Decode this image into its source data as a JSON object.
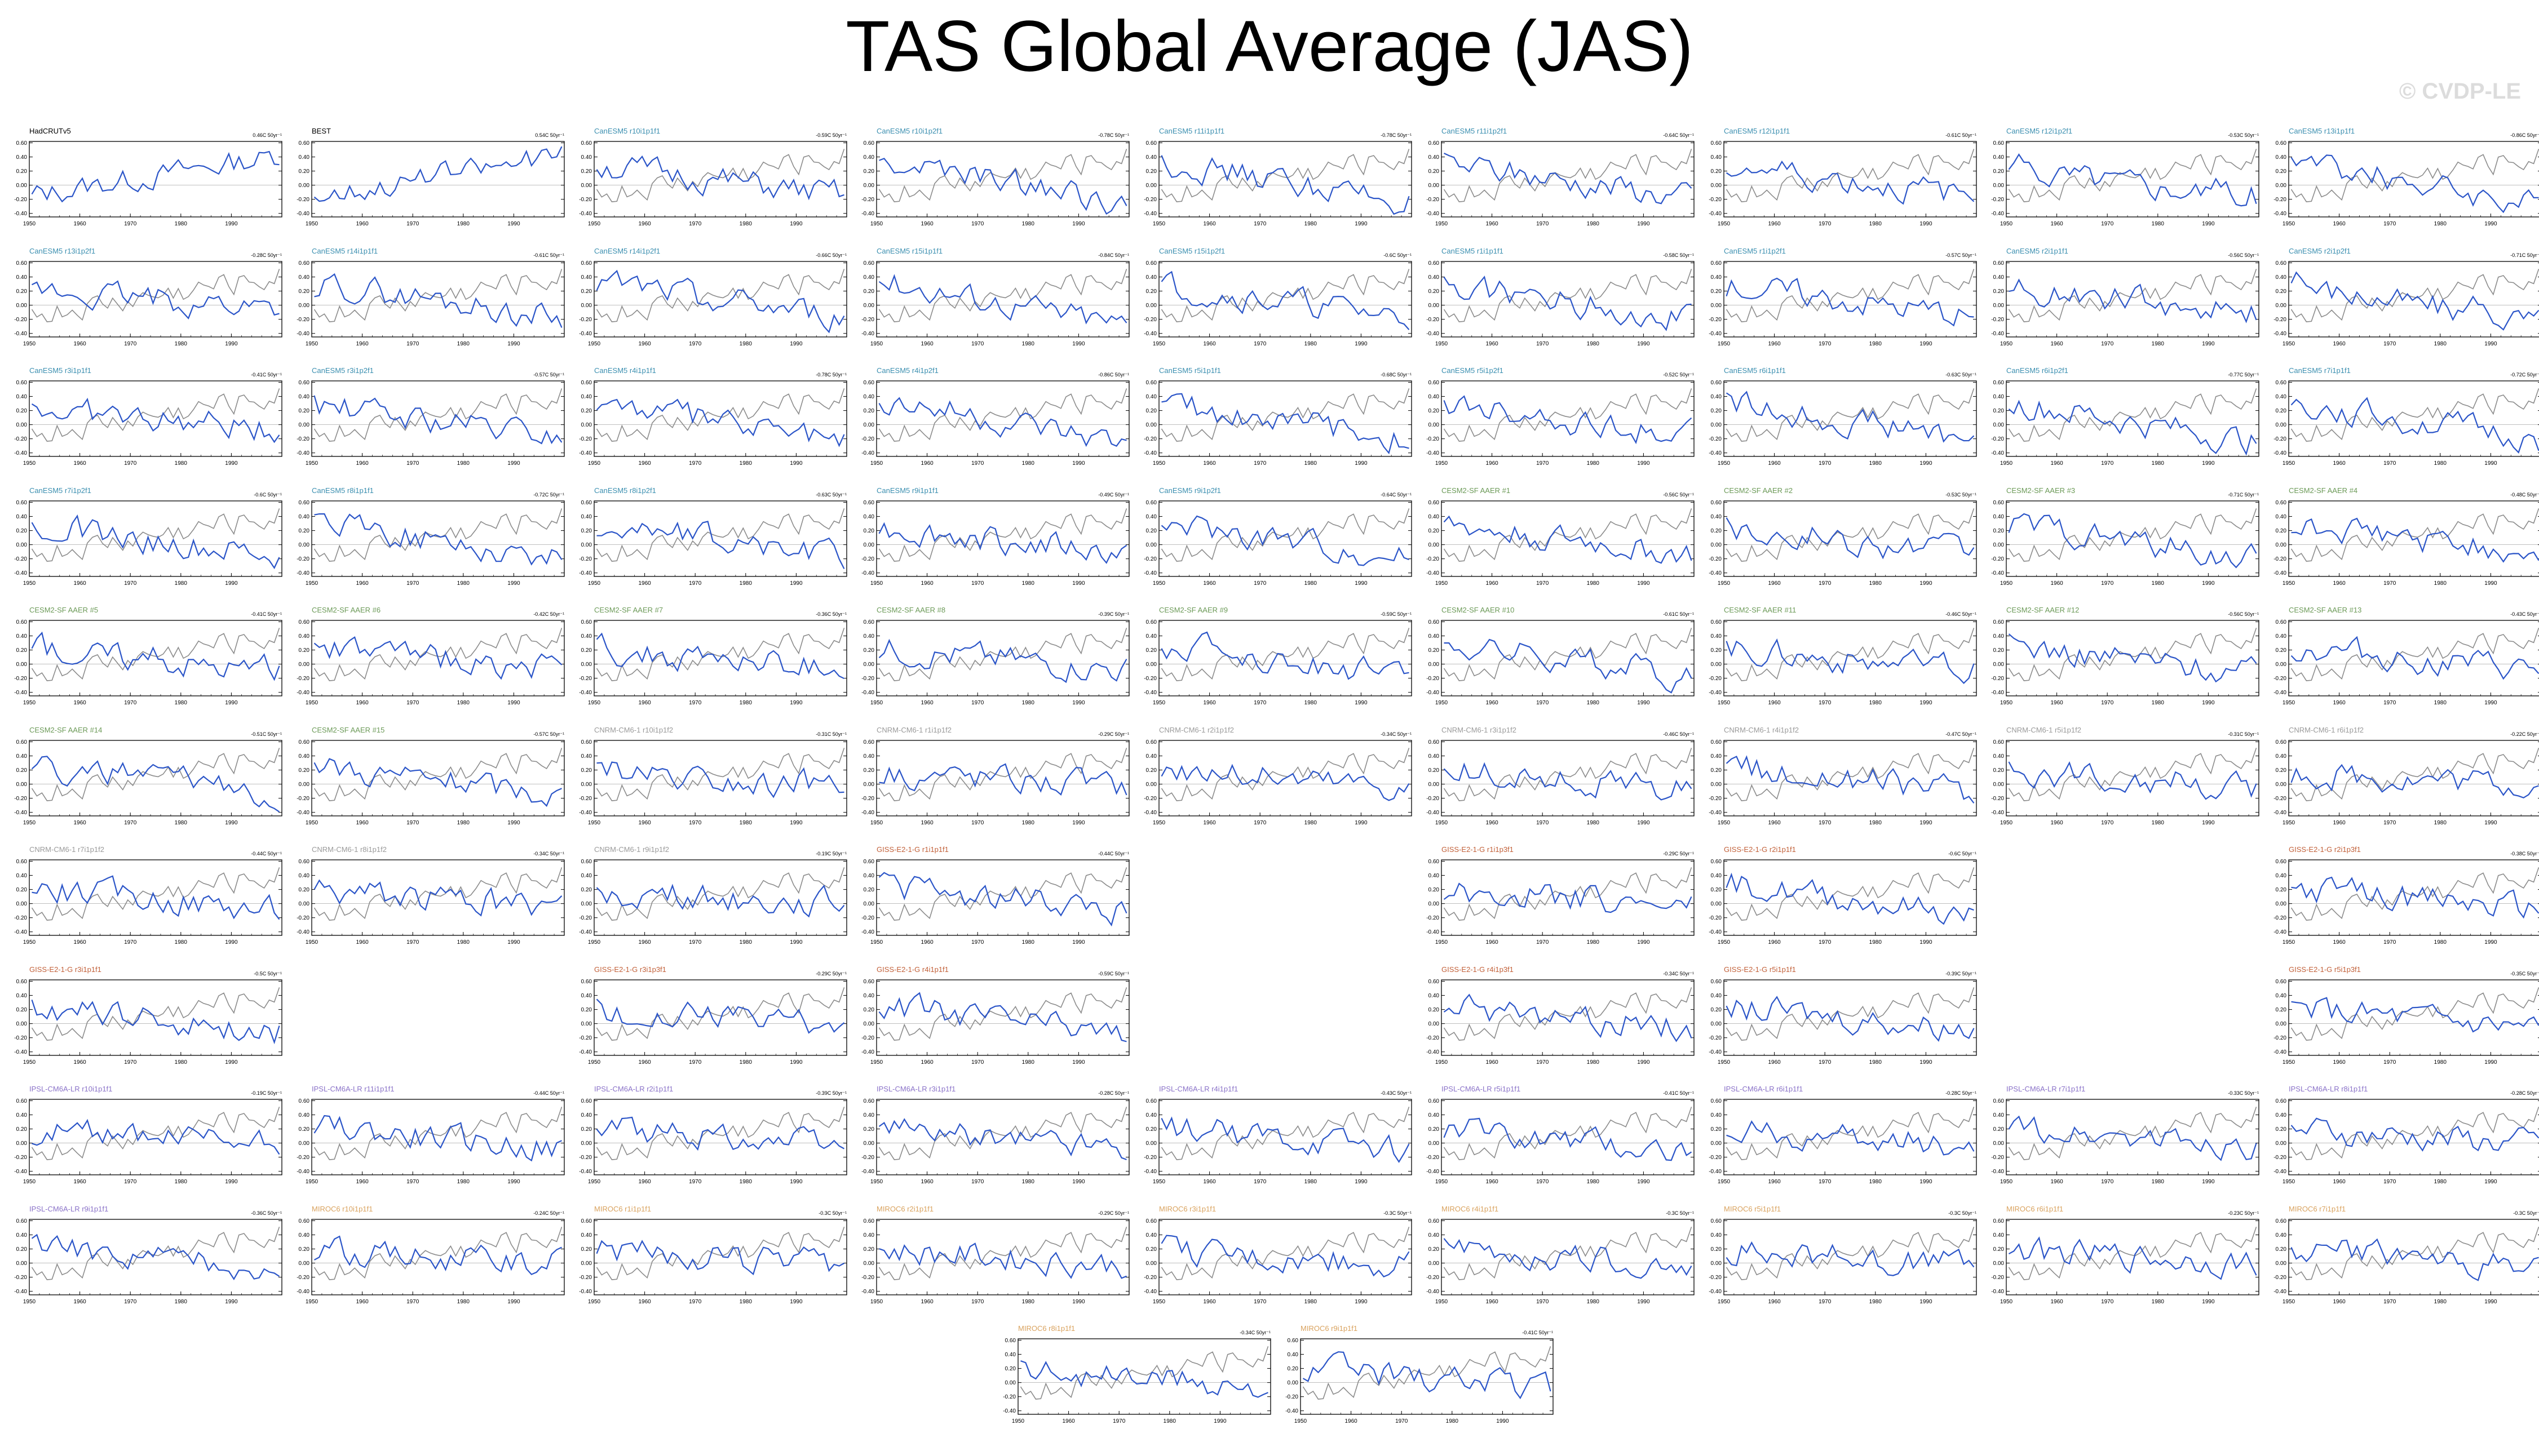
{
  "title": "TAS Global Average (JAS)",
  "watermark": "© CVDP-LE",
  "colors": {
    "model_line": "#2b55c8",
    "obs_line": "#8c8c8c",
    "zero_line": "#aaaaaa",
    "axis": "#000000"
  },
  "chart_data": {
    "type": "line",
    "x_range": [
      1950,
      2000
    ],
    "x_ticks": [
      1950,
      1960,
      1970,
      1980,
      1990
    ],
    "y_ticks": [
      -0.4,
      -0.2,
      0.0,
      0.2,
      0.4,
      0.6
    ],
    "y_tick_labels": [
      "-0.40",
      "-0.20",
      "0.00",
      "0.20",
      "0.40",
      "0.60"
    ],
    "x_tick_labels": [
      "1950",
      "1960",
      "1970",
      "1980",
      "1990"
    ],
    "ylim": [
      -0.45,
      0.62
    ],
    "observed_reference": "HadCRUTv5",
    "panels": [
      {
        "name": "HadCRUTv5",
        "trend": "0.46C 50yr⁻¹",
        "kind": "obs",
        "label_color": "#000000",
        "row": 0,
        "col": 0,
        "seed": 1
      },
      {
        "name": "BEST",
        "trend": "0.54C 50yr⁻¹",
        "kind": "obs",
        "label_color": "#000000",
        "row": 0,
        "col": 1,
        "seed": 2
      },
      {
        "name": "CanESM5 r10i1p1f1",
        "trend": "-0.59C 50yr⁻¹",
        "kind": "model",
        "label_color": "#3b8fb0",
        "row": 0,
        "col": 2,
        "seed": 3
      },
      {
        "name": "CanESM5 r10i1p2f1",
        "trend": "-0.78C 50yr⁻¹",
        "kind": "model",
        "label_color": "#3b8fb0",
        "row": 0,
        "col": 3,
        "seed": 4
      },
      {
        "name": "CanESM5 r11i1p1f1",
        "trend": "-0.78C 50yr⁻¹",
        "kind": "model",
        "label_color": "#3b8fb0",
        "row": 0,
        "col": 4,
        "seed": 5
      },
      {
        "name": "CanESM5 r11i1p2f1",
        "trend": "-0.64C 50yr⁻¹",
        "kind": "model",
        "label_color": "#3b8fb0",
        "row": 0,
        "col": 5,
        "seed": 6
      },
      {
        "name": "CanESM5 r12i1p1f1",
        "trend": "-0.61C 50yr⁻¹",
        "kind": "model",
        "label_color": "#3b8fb0",
        "row": 0,
        "col": 6,
        "seed": 7
      },
      {
        "name": "CanESM5 r12i1p2f1",
        "trend": "-0.53C 50yr⁻¹",
        "kind": "model",
        "label_color": "#3b8fb0",
        "row": 0,
        "col": 7,
        "seed": 8
      },
      {
        "name": "CanESM5 r13i1p1f1",
        "trend": "-0.86C 50yr⁻¹",
        "kind": "model",
        "label_color": "#3b8fb0",
        "row": 0,
        "col": 8,
        "seed": 9
      },
      {
        "name": "CanESM5 r13i1p2f1",
        "trend": "-0.28C 50yr⁻¹",
        "kind": "model",
        "label_color": "#3b8fb0",
        "row": 1,
        "col": 0,
        "seed": 10
      },
      {
        "name": "CanESM5 r14i1p1f1",
        "trend": "-0.61C 50yr⁻¹",
        "kind": "model",
        "label_color": "#3b8fb0",
        "row": 1,
        "col": 1,
        "seed": 11
      },
      {
        "name": "CanESM5 r14i1p2f1",
        "trend": "-0.66C 50yr⁻¹",
        "kind": "model",
        "label_color": "#3b8fb0",
        "row": 1,
        "col": 2,
        "seed": 12
      },
      {
        "name": "CanESM5 r15i1p1f1",
        "trend": "-0.84C 50yr⁻¹",
        "kind": "model",
        "label_color": "#3b8fb0",
        "row": 1,
        "col": 3,
        "seed": 13
      },
      {
        "name": "CanESM5 r15i1p2f1",
        "trend": "-0.6C 50yr⁻¹",
        "kind": "model",
        "label_color": "#3b8fb0",
        "row": 1,
        "col": 4,
        "seed": 14
      },
      {
        "name": "CanESM5 r1i1p1f1",
        "trend": "-0.58C 50yr⁻¹",
        "kind": "model",
        "label_color": "#3b8fb0",
        "row": 1,
        "col": 5,
        "seed": 15
      },
      {
        "name": "CanESM5 r1i1p2f1",
        "trend": "-0.57C 50yr⁻¹",
        "kind": "model",
        "label_color": "#3b8fb0",
        "row": 1,
        "col": 6,
        "seed": 16
      },
      {
        "name": "CanESM5 r2i1p1f1",
        "trend": "-0.56C 50yr⁻¹",
        "kind": "model",
        "label_color": "#3b8fb0",
        "row": 1,
        "col": 7,
        "seed": 17
      },
      {
        "name": "CanESM5 r2i1p2f1",
        "trend": "-0.71C 50yr⁻¹",
        "kind": "model",
        "label_color": "#3b8fb0",
        "row": 1,
        "col": 8,
        "seed": 18
      },
      {
        "name": "CanESM5 r3i1p1f1",
        "trend": "-0.41C 50yr⁻¹",
        "kind": "model",
        "label_color": "#3b8fb0",
        "row": 2,
        "col": 0,
        "seed": 19
      },
      {
        "name": "CanESM5 r3i1p2f1",
        "trend": "-0.57C 50yr⁻¹",
        "kind": "model",
        "label_color": "#3b8fb0",
        "row": 2,
        "col": 1,
        "seed": 20
      },
      {
        "name": "CanESM5 r4i1p1f1",
        "trend": "-0.78C 50yr⁻¹",
        "kind": "model",
        "label_color": "#3b8fb0",
        "row": 2,
        "col": 2,
        "seed": 21
      },
      {
        "name": "CanESM5 r4i1p2f1",
        "trend": "-0.86C 50yr⁻¹",
        "kind": "model",
        "label_color": "#3b8fb0",
        "row": 2,
        "col": 3,
        "seed": 22
      },
      {
        "name": "CanESM5 r5i1p1f1",
        "trend": "-0.68C 50yr⁻¹",
        "kind": "model",
        "label_color": "#3b8fb0",
        "row": 2,
        "col": 4,
        "seed": 23
      },
      {
        "name": "CanESM5 r5i1p2f1",
        "trend": "-0.52C 50yr⁻¹",
        "kind": "model",
        "label_color": "#3b8fb0",
        "row": 2,
        "col": 5,
        "seed": 24
      },
      {
        "name": "CanESM5 r6i1p1f1",
        "trend": "-0.63C 50yr⁻¹",
        "kind": "model",
        "label_color": "#3b8fb0",
        "row": 2,
        "col": 6,
        "seed": 25
      },
      {
        "name": "CanESM5 r6i1p2f1",
        "trend": "-0.77C 50yr⁻¹",
        "kind": "model",
        "label_color": "#3b8fb0",
        "row": 2,
        "col": 7,
        "seed": 26
      },
      {
        "name": "CanESM5 r7i1p1f1",
        "trend": "-0.72C 50yr⁻¹",
        "kind": "model",
        "label_color": "#3b8fb0",
        "row": 2,
        "col": 8,
        "seed": 27
      },
      {
        "name": "CanESM5 r7i1p2f1",
        "trend": "-0.6C 50yr⁻¹",
        "kind": "model",
        "label_color": "#3b8fb0",
        "row": 3,
        "col": 0,
        "seed": 28
      },
      {
        "name": "CanESM5 r8i1p1f1",
        "trend": "-0.72C 50yr⁻¹",
        "kind": "model",
        "label_color": "#3b8fb0",
        "row": 3,
        "col": 1,
        "seed": 29
      },
      {
        "name": "CanESM5 r8i1p2f1",
        "trend": "-0.63C 50yr⁻¹",
        "kind": "model",
        "label_color": "#3b8fb0",
        "row": 3,
        "col": 2,
        "seed": 30
      },
      {
        "name": "CanESM5 r9i1p1f1",
        "trend": "-0.49C 50yr⁻¹",
        "kind": "model",
        "label_color": "#3b8fb0",
        "row": 3,
        "col": 3,
        "seed": 31
      },
      {
        "name": "CanESM5 r9i1p2f1",
        "trend": "-0.64C 50yr⁻¹",
        "kind": "model",
        "label_color": "#3b8fb0",
        "row": 3,
        "col": 4,
        "seed": 32
      },
      {
        "name": "CESM2-SF AAER #1",
        "trend": "-0.56C 50yr⁻¹",
        "kind": "model",
        "label_color": "#6c9a58",
        "row": 3,
        "col": 5,
        "seed": 33
      },
      {
        "name": "CESM2-SF AAER #2",
        "trend": "-0.53C 50yr⁻¹",
        "kind": "model",
        "label_color": "#6c9a58",
        "row": 3,
        "col": 6,
        "seed": 34
      },
      {
        "name": "CESM2-SF AAER #3",
        "trend": "-0.71C 50yr⁻¹",
        "kind": "model",
        "label_color": "#6c9a58",
        "row": 3,
        "col": 7,
        "seed": 35
      },
      {
        "name": "CESM2-SF AAER #4",
        "trend": "-0.48C 50yr⁻¹",
        "kind": "model",
        "label_color": "#6c9a58",
        "row": 3,
        "col": 8,
        "seed": 36
      },
      {
        "name": "CESM2-SF AAER #5",
        "trend": "-0.41C 50yr⁻¹",
        "kind": "model",
        "label_color": "#6c9a58",
        "row": 4,
        "col": 0,
        "seed": 37
      },
      {
        "name": "CESM2-SF AAER #6",
        "trend": "-0.42C 50yr⁻¹",
        "kind": "model",
        "label_color": "#6c9a58",
        "row": 4,
        "col": 1,
        "seed": 38
      },
      {
        "name": "CESM2-SF AAER #7",
        "trend": "-0.36C 50yr⁻¹",
        "kind": "model",
        "label_color": "#6c9a58",
        "row": 4,
        "col": 2,
        "seed": 39
      },
      {
        "name": "CESM2-SF AAER #8",
        "trend": "-0.39C 50yr⁻¹",
        "kind": "model",
        "label_color": "#6c9a58",
        "row": 4,
        "col": 3,
        "seed": 40
      },
      {
        "name": "CESM2-SF AAER #9",
        "trend": "-0.59C 50yr⁻¹",
        "kind": "model",
        "label_color": "#6c9a58",
        "row": 4,
        "col": 4,
        "seed": 41
      },
      {
        "name": "CESM2-SF AAER #10",
        "trend": "-0.61C 50yr⁻¹",
        "kind": "model",
        "label_color": "#6c9a58",
        "row": 4,
        "col": 5,
        "seed": 42
      },
      {
        "name": "CESM2-SF AAER #11",
        "trend": "-0.46C 50yr⁻¹",
        "kind": "model",
        "label_color": "#6c9a58",
        "row": 4,
        "col": 6,
        "seed": 43
      },
      {
        "name": "CESM2-SF AAER #12",
        "trend": "-0.56C 50yr⁻¹",
        "kind": "model",
        "label_color": "#6c9a58",
        "row": 4,
        "col": 7,
        "seed": 44
      },
      {
        "name": "CESM2-SF AAER #13",
        "trend": "-0.43C 50yr⁻¹",
        "kind": "model",
        "label_color": "#6c9a58",
        "row": 4,
        "col": 8,
        "seed": 45
      },
      {
        "name": "CESM2-SF AAER #14",
        "trend": "-0.51C 50yr⁻¹",
        "kind": "model",
        "label_color": "#6c9a58",
        "row": 5,
        "col": 0,
        "seed": 46
      },
      {
        "name": "CESM2-SF AAER #15",
        "trend": "-0.57C 50yr⁻¹",
        "kind": "model",
        "label_color": "#6c9a58",
        "row": 5,
        "col": 1,
        "seed": 47
      },
      {
        "name": "CNRM-CM6-1 r10i1p1f2",
        "trend": "-0.31C 50yr⁻¹",
        "kind": "model",
        "label_color": "#9a9a9a",
        "row": 5,
        "col": 2,
        "seed": 48
      },
      {
        "name": "CNRM-CM6-1 r1i1p1f2",
        "trend": "-0.29C 50yr⁻¹",
        "kind": "model",
        "label_color": "#9a9a9a",
        "row": 5,
        "col": 3,
        "seed": 49
      },
      {
        "name": "CNRM-CM6-1 r2i1p1f2",
        "trend": "-0.34C 50yr⁻¹",
        "kind": "model",
        "label_color": "#9a9a9a",
        "row": 5,
        "col": 4,
        "seed": 50
      },
      {
        "name": "CNRM-CM6-1 r3i1p1f2",
        "trend": "-0.46C 50yr⁻¹",
        "kind": "model",
        "label_color": "#9a9a9a",
        "row": 5,
        "col": 5,
        "seed": 51
      },
      {
        "name": "CNRM-CM6-1 r4i1p1f2",
        "trend": "-0.47C 50yr⁻¹",
        "kind": "model",
        "label_color": "#9a9a9a",
        "row": 5,
        "col": 6,
        "seed": 52
      },
      {
        "name": "CNRM-CM6-1 r5i1p1f2",
        "trend": "-0.31C 50yr⁻¹",
        "kind": "model",
        "label_color": "#9a9a9a",
        "row": 5,
        "col": 7,
        "seed": 53
      },
      {
        "name": "CNRM-CM6-1 r6i1p1f2",
        "trend": "-0.22C 50yr⁻¹",
        "kind": "model",
        "label_color": "#9a9a9a",
        "row": 5,
        "col": 8,
        "seed": 54
      },
      {
        "name": "CNRM-CM6-1 r7i1p1f2",
        "trend": "-0.44C 50yr⁻¹",
        "kind": "model",
        "label_color": "#9a9a9a",
        "row": 6,
        "col": 0,
        "seed": 55
      },
      {
        "name": "CNRM-CM6-1 r8i1p1f2",
        "trend": "-0.34C 50yr⁻¹",
        "kind": "model",
        "label_color": "#9a9a9a",
        "row": 6,
        "col": 1,
        "seed": 56
      },
      {
        "name": "CNRM-CM6-1 r9i1p1f2",
        "trend": "-0.19C 50yr⁻¹",
        "kind": "model",
        "label_color": "#9a9a9a",
        "row": 6,
        "col": 2,
        "seed": 57
      },
      {
        "name": "GISS-E2-1-G r1i1p1f1",
        "trend": "-0.44C 50yr⁻¹",
        "kind": "model",
        "label_color": "#c2613a",
        "row": 6,
        "col": 3,
        "seed": 58
      },
      {
        "name": "GISS-E2-1-G r1i1p3f1",
        "trend": "-0.29C 50yr⁻¹",
        "kind": "model",
        "label_color": "#c2613a",
        "row": 6,
        "col": 5,
        "seed": 59
      },
      {
        "name": "GISS-E2-1-G r2i1p1f1",
        "trend": "-0.6C 50yr⁻¹",
        "kind": "model",
        "label_color": "#c2613a",
        "row": 6,
        "col": 6,
        "seed": 60
      },
      {
        "name": "GISS-E2-1-G r2i1p3f1",
        "trend": "-0.38C 50yr⁻¹",
        "kind": "model",
        "label_color": "#c2613a",
        "row": 6,
        "col": 8,
        "seed": 61
      },
      {
        "name": "GISS-E2-1-G r3i1p1f1",
        "trend": "-0.5C 50yr⁻¹",
        "kind": "model",
        "label_color": "#c2613a",
        "row": 7,
        "col": 0,
        "seed": 62
      },
      {
        "name": "GISS-E2-1-G r3i1p3f1",
        "trend": "-0.29C 50yr⁻¹",
        "kind": "model",
        "label_color": "#c2613a",
        "row": 7,
        "col": 2,
        "seed": 63
      },
      {
        "name": "GISS-E2-1-G r4i1p1f1",
        "trend": "-0.59C 50yr⁻¹",
        "kind": "model",
        "label_color": "#c2613a",
        "row": 7,
        "col": 3,
        "seed": 64
      },
      {
        "name": "GISS-E2-1-G r4i1p3f1",
        "trend": "-0.34C 50yr⁻¹",
        "kind": "model",
        "label_color": "#c2613a",
        "row": 7,
        "col": 5,
        "seed": 65
      },
      {
        "name": "GISS-E2-1-G r5i1p1f1",
        "trend": "-0.39C 50yr⁻¹",
        "kind": "model",
        "label_color": "#c2613a",
        "row": 7,
        "col": 6,
        "seed": 66
      },
      {
        "name": "GISS-E2-1-G r5i1p3f1",
        "trend": "-0.35C 50yr⁻¹",
        "kind": "model",
        "label_color": "#c2613a",
        "row": 7,
        "col": 8,
        "seed": 67
      },
      {
        "name": "IPSL-CM6A-LR r10i1p1f1",
        "trend": "-0.19C 50yr⁻¹",
        "kind": "model",
        "label_color": "#8a72c8",
        "row": 8,
        "col": 0,
        "seed": 68
      },
      {
        "name": "IPSL-CM6A-LR r11i1p1f1",
        "trend": "-0.44C 50yr⁻¹",
        "kind": "model",
        "label_color": "#8a72c8",
        "row": 8,
        "col": 1,
        "seed": 69
      },
      {
        "name": "IPSL-CM6A-LR r2i1p1f1",
        "trend": "-0.39C 50yr⁻¹",
        "kind": "model",
        "label_color": "#8a72c8",
        "row": 8,
        "col": 2,
        "seed": 70
      },
      {
        "name": "IPSL-CM6A-LR r3i1p1f1",
        "trend": "-0.28C 50yr⁻¹",
        "kind": "model",
        "label_color": "#8a72c8",
        "row": 8,
        "col": 3,
        "seed": 71
      },
      {
        "name": "IPSL-CM6A-LR r4i1p1f1",
        "trend": "-0.43C 50yr⁻¹",
        "kind": "model",
        "label_color": "#8a72c8",
        "row": 8,
        "col": 4,
        "seed": 72
      },
      {
        "name": "IPSL-CM6A-LR r5i1p1f1",
        "trend": "-0.41C 50yr⁻¹",
        "kind": "model",
        "label_color": "#8a72c8",
        "row": 8,
        "col": 5,
        "seed": 73
      },
      {
        "name": "IPSL-CM6A-LR r6i1p1f1",
        "trend": "-0.28C 50yr⁻¹",
        "kind": "model",
        "label_color": "#8a72c8",
        "row": 8,
        "col": 6,
        "seed": 74
      },
      {
        "name": "IPSL-CM6A-LR r7i1p1f1",
        "trend": "-0.33C 50yr⁻¹",
        "kind": "model",
        "label_color": "#8a72c8",
        "row": 8,
        "col": 7,
        "seed": 75
      },
      {
        "name": "IPSL-CM6A-LR r8i1p1f1",
        "trend": "-0.28C 50yr⁻¹",
        "kind": "model",
        "label_color": "#8a72c8",
        "row": 8,
        "col": 8,
        "seed": 76
      },
      {
        "name": "IPSL-CM6A-LR r9i1p1f1",
        "trend": "-0.36C 50yr⁻¹",
        "kind": "model",
        "label_color": "#8a72c8",
        "row": 9,
        "col": 0,
        "seed": 77
      },
      {
        "name": "MIROC6 r10i1p1f1",
        "trend": "-0.24C 50yr⁻¹",
        "kind": "model",
        "label_color": "#d9a25e",
        "row": 9,
        "col": 1,
        "seed": 78
      },
      {
        "name": "MIROC6 r1i1p1f1",
        "trend": "-0.3C 50yr⁻¹",
        "kind": "model",
        "label_color": "#d9a25e",
        "row": 9,
        "col": 2,
        "seed": 79
      },
      {
        "name": "MIROC6 r2i1p1f1",
        "trend": "-0.29C 50yr⁻¹",
        "kind": "model",
        "label_color": "#d9a25e",
        "row": 9,
        "col": 3,
        "seed": 80
      },
      {
        "name": "MIROC6 r3i1p1f1",
        "trend": "-0.3C 50yr⁻¹",
        "kind": "model",
        "label_color": "#d9a25e",
        "row": 9,
        "col": 4,
        "seed": 81
      },
      {
        "name": "MIROC6 r4i1p1f1",
        "trend": "-0.3C 50yr⁻¹",
        "kind": "model",
        "label_color": "#d9a25e",
        "row": 9,
        "col": 5,
        "seed": 82
      },
      {
        "name": "MIROC6 r5i1p1f1",
        "trend": "-0.3C 50yr⁻¹",
        "kind": "model",
        "label_color": "#d9a25e",
        "row": 9,
        "col": 6,
        "seed": 83
      },
      {
        "name": "MIROC6 r6i1p1f1",
        "trend": "-0.23C 50yr⁻¹",
        "kind": "model",
        "label_color": "#d9a25e",
        "row": 9,
        "col": 7,
        "seed": 84
      },
      {
        "name": "MIROC6 r7i1p1f1",
        "trend": "-0.3C 50yr⁻¹",
        "kind": "model",
        "label_color": "#d9a25e",
        "row": 9,
        "col": 8,
        "seed": 85
      },
      {
        "name": "MIROC6 r8i1p1f1",
        "trend": "-0.34C 50yr⁻¹",
        "kind": "model",
        "label_color": "#d9a25e",
        "row": 10,
        "col": 3.5,
        "seed": 86
      },
      {
        "name": "MIROC6 r9i1p1f1",
        "trend": "-0.41C 50yr⁻¹",
        "kind": "model",
        "label_color": "#d9a25e",
        "row": 10,
        "col": 4.5,
        "seed": 87
      }
    ]
  }
}
